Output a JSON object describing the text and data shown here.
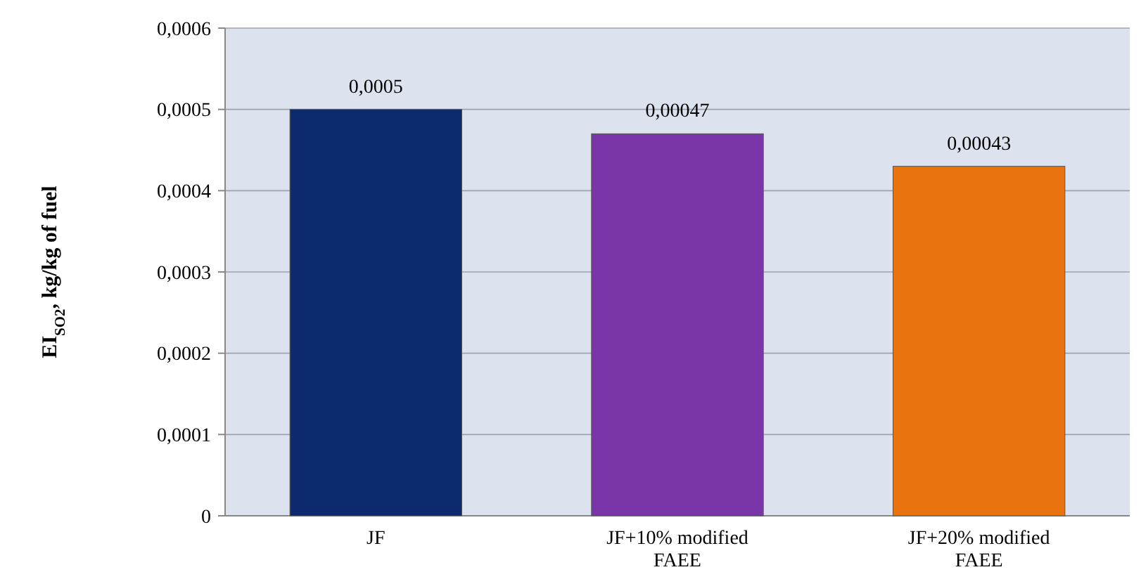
{
  "chart_data": {
    "type": "bar",
    "ylabel": "EI$_{SO2}$, kg/kg of fuel",
    "categories": [
      "JF",
      "JF+10% modified FAEE",
      "JF+20% modified FAEE"
    ],
    "values": [
      0.0005,
      0.00047,
      0.00043
    ],
    "colors": [
      "#0e2a6e",
      "#7a35a9",
      "#e8730f"
    ],
    "value_labels": [
      "0,0005",
      "0,00047",
      "0,00043"
    ],
    "ylim": [
      0,
      0.0006
    ],
    "yticks": [
      0,
      {
        "value": 0.0001,
        "label": "0,0001"
      },
      {
        "value": 0.0002,
        "label": "0,0002"
      },
      {
        "value": 0.0003,
        "label": "0,0003"
      },
      {
        "value": 0.0004,
        "label": "0,0004"
      },
      {
        "value": 0.0005,
        "label": "0,0005"
      },
      {
        "value": 0.0006,
        "label": "0,0006"
      }
    ],
    "grid": "y"
  }
}
